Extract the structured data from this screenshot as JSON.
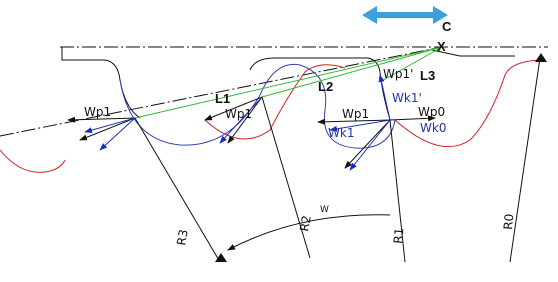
{
  "labels": [
    "C",
    "X",
    "L1",
    "L2",
    "L3",
    "Wp1'",
    "Wp1",
    "Wp1",
    "Wp1",
    "Wp0",
    "Wk1'",
    "Wk1",
    "Wk0",
    "W",
    "R3",
    "R2",
    "R1",
    "R0"
  ]
}
